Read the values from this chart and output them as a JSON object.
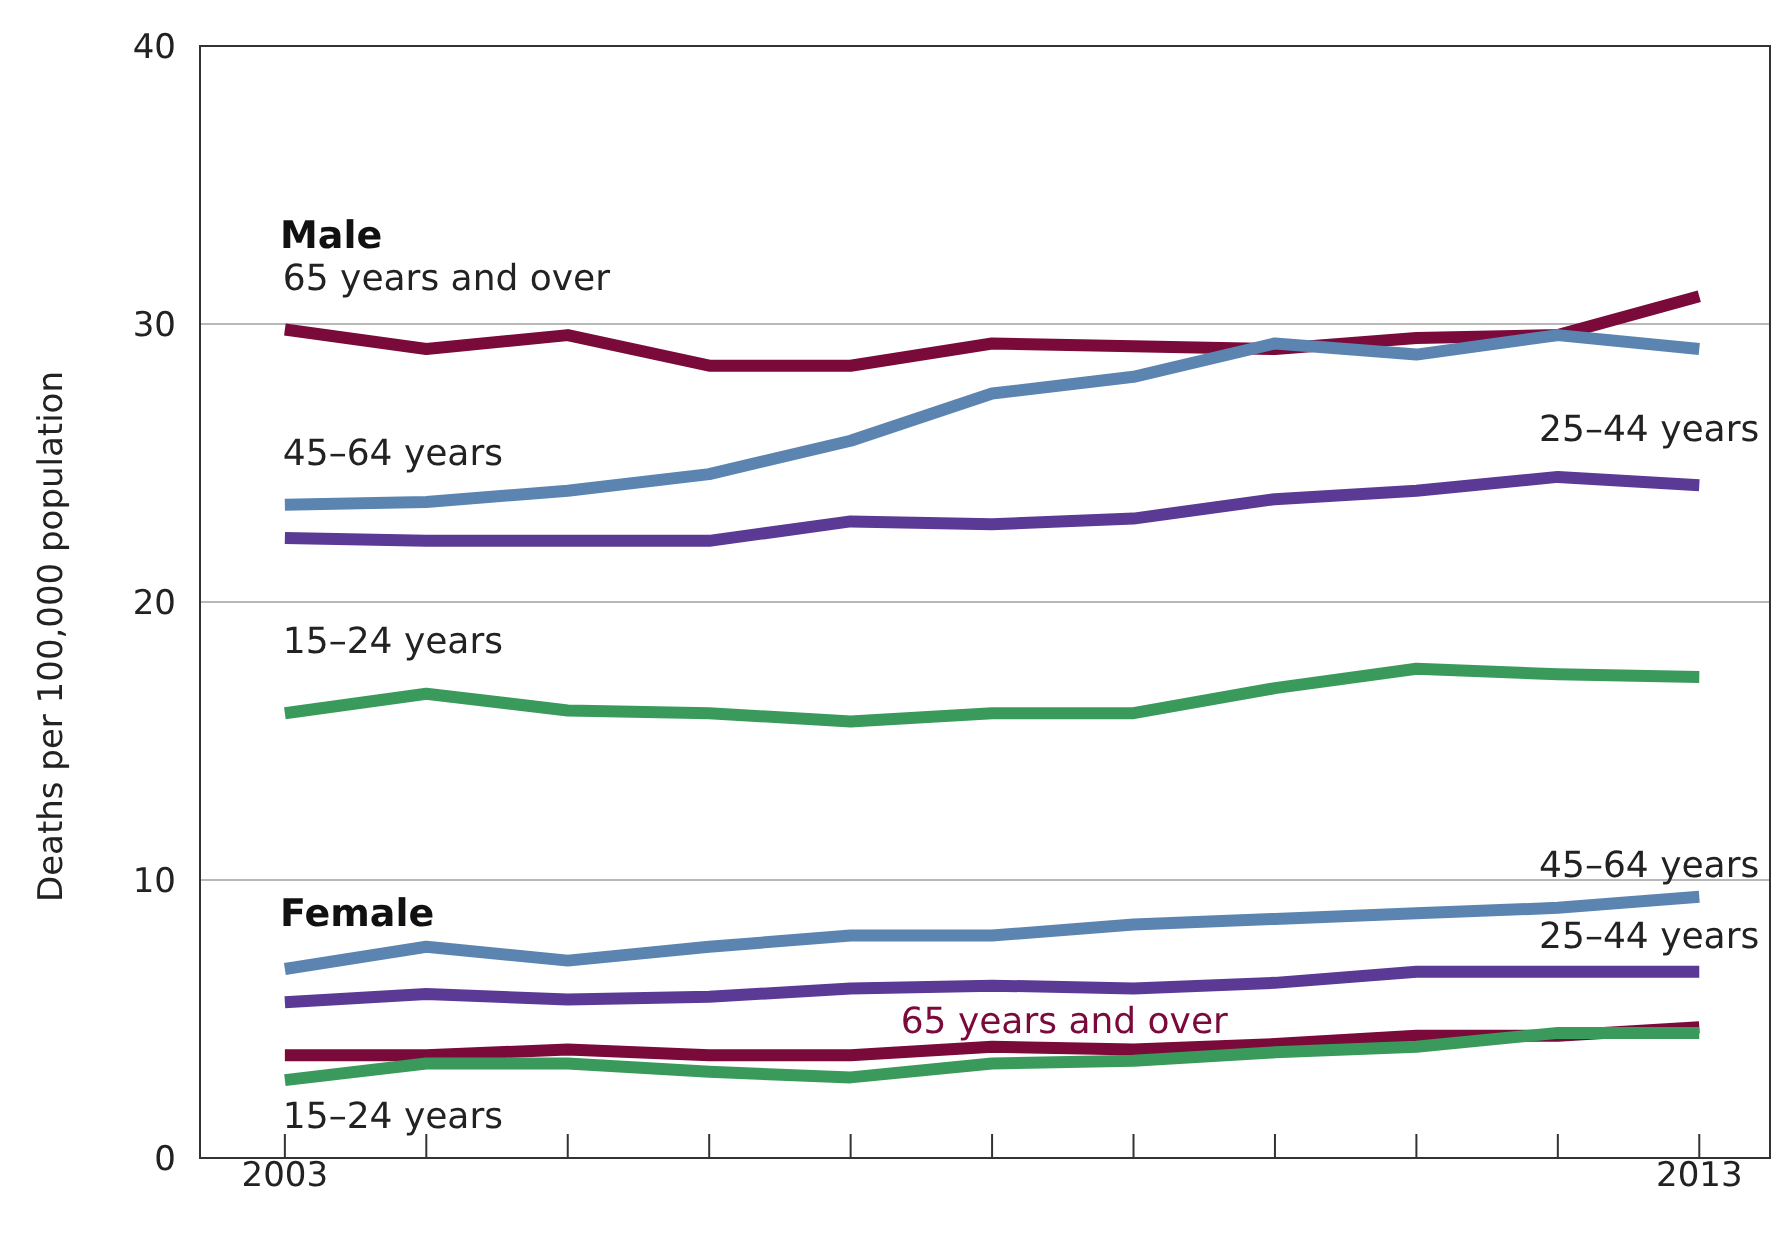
{
  "chart_data": {
    "type": "line",
    "ylabel": "Deaths per 100,000  population",
    "annotations": [
      "Male",
      "Female"
    ],
    "x": [
      2003,
      2004,
      2005,
      2006,
      2007,
      2008,
      2009,
      2010,
      2011,
      2012,
      2013
    ],
    "xlim": [
      2002.4,
      2013.5
    ],
    "xticks": [
      2003,
      {
        "value": 2004,
        "label": null
      },
      {
        "value": 2005,
        "label": null
      },
      {
        "value": 2006,
        "label": null
      },
      {
        "value": 2007,
        "label": null
      },
      {
        "value": 2008,
        "label": null
      },
      {
        "value": 2009,
        "label": null
      },
      {
        "value": 2010,
        "label": null
      },
      {
        "value": 2011,
        "label": null
      },
      {
        "value": 2012,
        "label": null
      },
      2013
    ],
    "ylim": [
      0,
      40
    ],
    "yticks": [
      0,
      10,
      20,
      30,
      40
    ],
    "grid": "y",
    "legend": false,
    "marker": "none",
    "line_style": "solid",
    "series": [
      {
        "name": "65 years and over",
        "color": "#7a0a3a",
        "values": [
          29.8,
          29.1,
          29.6,
          28.5,
          28.5,
          29.3,
          29.2,
          29.1,
          29.5,
          29.6,
          31.0
        ]
      },
      {
        "name": "45–64 years",
        "color": "#5b84b1",
        "values": [
          23.5,
          23.6,
          24.0,
          24.6,
          25.8,
          27.5,
          28.1,
          29.3,
          28.9,
          29.6,
          29.1
        ]
      },
      {
        "name": "25–44 years",
        "color": "#5b3a96",
        "values": [
          22.3,
          22.2,
          22.2,
          22.2,
          22.9,
          22.8,
          23.0,
          23.7,
          24.0,
          24.5,
          24.2
        ]
      },
      {
        "name": "15–24 years",
        "color": "#3a9a5c",
        "values": [
          16.0,
          16.7,
          16.1,
          16.0,
          15.7,
          16.0,
          16.0,
          16.9,
          17.6,
          17.4,
          17.3
        ]
      },
      {
        "name": "45–64 years",
        "color": "#5b84b1",
        "values": [
          6.8,
          7.6,
          7.1,
          7.6,
          8.0,
          8.0,
          8.4,
          8.6,
          8.8,
          9.0,
          9.4
        ]
      },
      {
        "name": "25–44 years",
        "color": "#5b3a96",
        "values": [
          5.6,
          5.9,
          5.7,
          5.8,
          6.1,
          6.2,
          6.1,
          6.3,
          6.7,
          6.7,
          6.7
        ]
      },
      {
        "name": "65 years and over",
        "color": "#7a0a3a",
        "values": [
          3.7,
          3.7,
          3.9,
          3.7,
          3.7,
          4.0,
          3.9,
          4.1,
          4.4,
          4.4,
          4.7
        ]
      },
      {
        "name": "15–24 years",
        "color": "#3a9a5c",
        "values": [
          2.8,
          3.4,
          3.4,
          3.1,
          2.9,
          3.4,
          3.5,
          3.8,
          4.0,
          4.5,
          4.5
        ]
      }
    ]
  }
}
